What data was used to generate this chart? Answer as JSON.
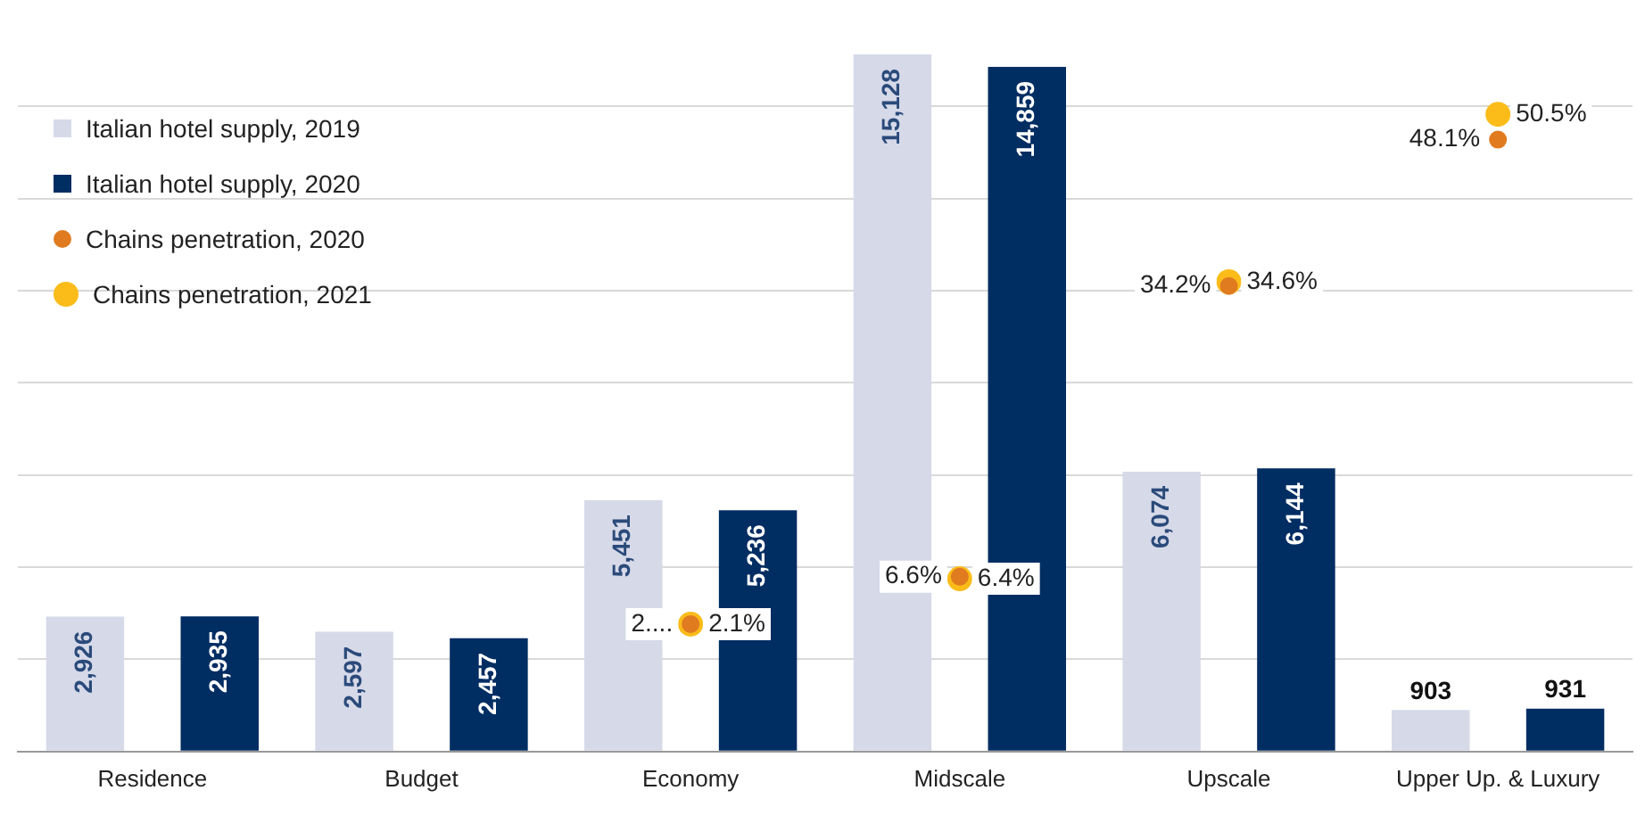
{
  "chart_data": {
    "type": "bar",
    "categories": [
      "Residence",
      "Budget",
      "Economy",
      "Midscale",
      "Upscale",
      "Upper Up. & Luxury"
    ],
    "series": [
      {
        "name": "Italian hotel supply, 2019",
        "color": "#d6d9e8",
        "values": [
          2926,
          2597,
          5451,
          15128,
          6074,
          903
        ],
        "value_labels": [
          "2,926",
          "2,597",
          "5,451",
          "15,128",
          "6,074",
          "903"
        ]
      },
      {
        "name": "Italian hotel supply, 2020",
        "color": "#002d62",
        "values": [
          2935,
          2457,
          5236,
          14859,
          6144,
          931
        ],
        "value_labels": [
          "2,935",
          "2,457",
          "5,236",
          "14,859",
          "6,144",
          "931"
        ]
      },
      {
        "name": "Chains penetration, 2020",
        "type": "scatter",
        "axis": "y2",
        "color": "#e07b1f",
        "values": [
          null,
          null,
          2.1,
          6.6,
          34.2,
          48.1
        ],
        "value_labels": [
          null,
          null,
          "2....",
          "6.6%",
          "34.2%",
          "48.1%"
        ]
      },
      {
        "name": "Chains penetration, 2021",
        "type": "scatter",
        "axis": "y2",
        "color": "#fbbc1a",
        "values": [
          null,
          null,
          2.1,
          6.4,
          34.6,
          50.5
        ],
        "value_labels": [
          null,
          null,
          "2.1%",
          "6.4%",
          "34.6%",
          "50.5%"
        ]
      }
    ],
    "yticks": [
      {
        "value": 0,
        "label": null
      },
      {
        "value": 2000,
        "label": null
      },
      {
        "value": 4000,
        "label": null
      },
      {
        "value": 6000,
        "label": null
      },
      {
        "value": 8000,
        "label": null
      },
      {
        "value": 10000,
        "label": null
      },
      {
        "value": 12000,
        "label": null
      },
      {
        "value": 14000,
        "label": null
      }
    ],
    "tick_labels": "x",
    "grid": "y",
    "legend": "top left",
    "marker": "circle"
  }
}
